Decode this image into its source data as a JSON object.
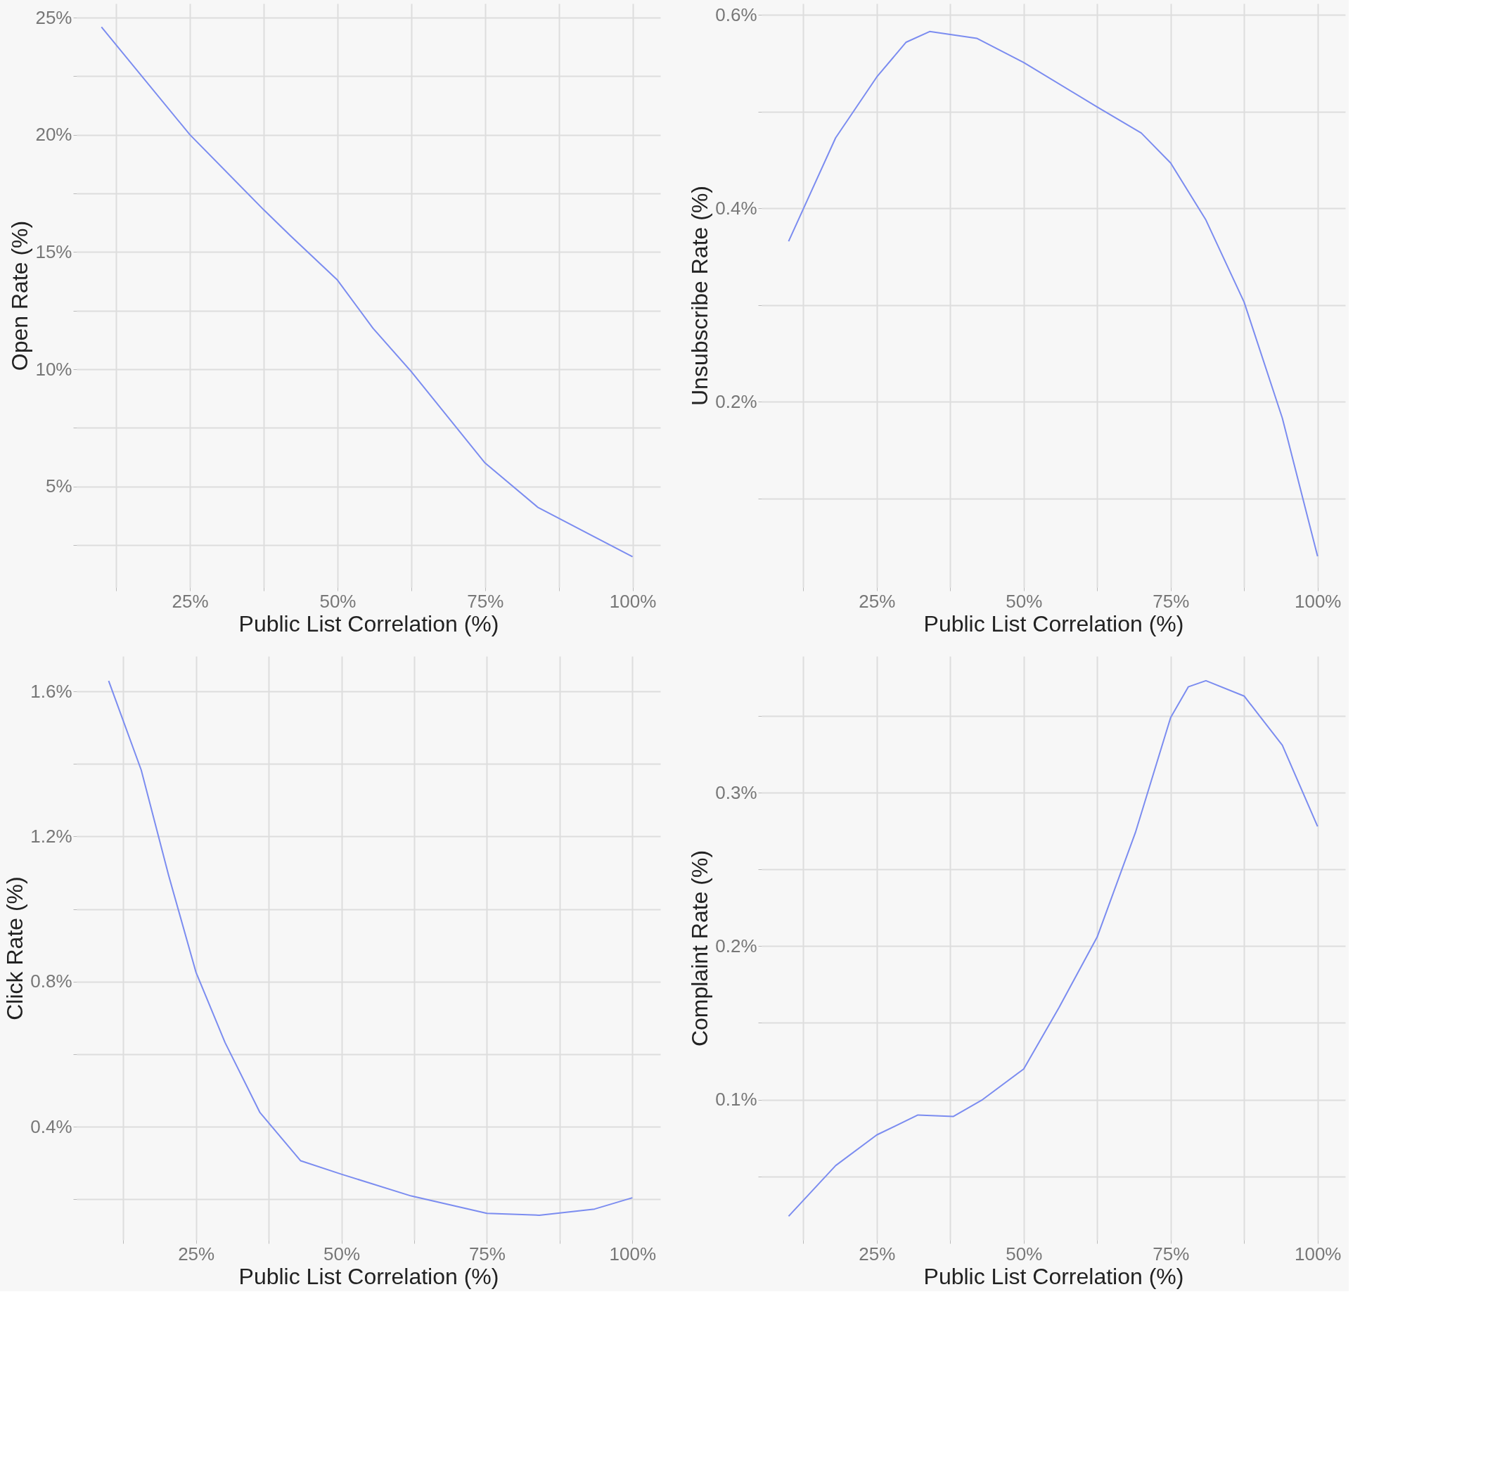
{
  "chart_data": [
    {
      "type": "line",
      "xlabel": "Public List Correlation (%)",
      "ylabel": "Open Rate (%)",
      "grid": true,
      "line_style": "solid",
      "x": [
        10,
        25,
        37.5,
        42,
        50,
        56,
        62.5,
        75,
        84,
        100
      ],
      "series": [
        {
          "color": "#7b8cf0",
          "values": [
            24.6,
            20.0,
            16.8,
            15.7,
            13.8,
            11.75,
            9.9,
            6.0,
            4.1,
            2.0
          ]
        }
      ],
      "xlim": [
        5.8,
        104.7
      ],
      "ylim": [
        0.7,
        25.6
      ],
      "xticks": [
        {
          "value": 12.5,
          "label": null
        },
        {
          "value": 25,
          "label": "25%"
        },
        {
          "value": 37.5,
          "label": null
        },
        {
          "value": 50,
          "label": "50%"
        },
        {
          "value": 62.5,
          "label": null
        },
        {
          "value": 75,
          "label": "75%"
        },
        {
          "value": 87.5,
          "label": null
        },
        {
          "value": 100,
          "label": "100%"
        }
      ],
      "yticks": [
        {
          "value": 2.5,
          "label": null
        },
        {
          "value": 5,
          "label": "5%"
        },
        {
          "value": 7.5,
          "label": null
        },
        {
          "value": 10,
          "label": "10%"
        },
        {
          "value": 12.5,
          "label": null
        },
        {
          "value": 15,
          "label": "15%"
        },
        {
          "value": 17.5,
          "label": null
        },
        {
          "value": 20,
          "label": "20%"
        },
        {
          "value": 22.5,
          "label": null
        },
        {
          "value": 25,
          "label": "25%"
        }
      ]
    },
    {
      "type": "line",
      "xlabel": "Public List Correlation (%)",
      "ylabel": "Unsubscribe Rate (%)",
      "grid": true,
      "line_style": "solid",
      "x": [
        10,
        18,
        25,
        30,
        34,
        42,
        50,
        62.5,
        70,
        75,
        81,
        87.5,
        94,
        100
      ],
      "series": [
        {
          "color": "#7b8cf0",
          "values": [
            0.366,
            0.473,
            0.536,
            0.572,
            0.583,
            0.576,
            0.551,
            0.505,
            0.478,
            0.447,
            0.388,
            0.303,
            0.183,
            0.04
          ]
        }
      ],
      "xlim": [
        5.4,
        104.7
      ],
      "ylim": [
        0.008,
        0.612
      ],
      "xticks": [
        {
          "value": 12.5,
          "label": null
        },
        {
          "value": 25,
          "label": "25%"
        },
        {
          "value": 37.5,
          "label": null
        },
        {
          "value": 50,
          "label": "50%"
        },
        {
          "value": 62.5,
          "label": null
        },
        {
          "value": 75,
          "label": "75%"
        },
        {
          "value": 87.5,
          "label": null
        },
        {
          "value": 100,
          "label": "100%"
        }
      ],
      "yticks": [
        {
          "value": 0.1,
          "label": null
        },
        {
          "value": 0.2,
          "label": "0.2%"
        },
        {
          "value": 0.3,
          "label": null
        },
        {
          "value": 0.4,
          "label": "0.4%"
        },
        {
          "value": 0.5,
          "label": null
        },
        {
          "value": 0.6,
          "label": "0.6%"
        }
      ]
    },
    {
      "type": "line",
      "xlabel": "Public List Correlation (%)",
      "ylabel": "Click Rate (%)",
      "grid": true,
      "line_style": "solid",
      "x": [
        10,
        15.6,
        20.3,
        25,
        30,
        36,
        43,
        50,
        62,
        75,
        84,
        93.5,
        100
      ],
      "series": [
        {
          "color": "#7b8cf0",
          "values": [
            1.629,
            1.383,
            1.093,
            0.826,
            0.632,
            0.439,
            0.306,
            0.269,
            0.209,
            0.161,
            0.156,
            0.173,
            0.204
          ]
        }
      ],
      "xlim": [
        4.5,
        104.8
      ],
      "ylim": [
        0.088,
        1.697
      ],
      "xticks": [
        {
          "value": 12.5,
          "label": null
        },
        {
          "value": 25,
          "label": "25%"
        },
        {
          "value": 37.5,
          "label": null
        },
        {
          "value": 50,
          "label": "50%"
        },
        {
          "value": 62.5,
          "label": null
        },
        {
          "value": 75,
          "label": "75%"
        },
        {
          "value": 87.5,
          "label": null
        },
        {
          "value": 100,
          "label": "100%"
        }
      ],
      "yticks": [
        {
          "value": 0.2,
          "label": null
        },
        {
          "value": 0.4,
          "label": "0.4%"
        },
        {
          "value": 0.6,
          "label": null
        },
        {
          "value": 0.8,
          "label": "0.8%"
        },
        {
          "value": 1.0,
          "label": null
        },
        {
          "value": 1.2,
          "label": "1.2%"
        },
        {
          "value": 1.4,
          "label": null
        },
        {
          "value": 1.6,
          "label": "1.6%"
        }
      ]
    },
    {
      "type": "line",
      "xlabel": "Public List Correlation (%)",
      "ylabel": "Complaint Rate (%)",
      "grid": true,
      "line_style": "solid",
      "x": [
        10,
        18,
        25,
        32,
        38,
        43,
        50,
        56,
        62.5,
        69,
        75,
        78,
        81,
        87.5,
        94,
        100
      ],
      "series": [
        {
          "color": "#7b8cf0",
          "values": [
            0.024,
            0.057,
            0.077,
            0.09,
            0.089,
            0.1,
            0.12,
            0.16,
            0.206,
            0.274,
            0.349,
            0.369,
            0.373,
            0.363,
            0.331,
            0.278
          ]
        }
      ],
      "xlim": [
        5.4,
        104.7
      ],
      "ylim": [
        0.0086,
        0.389
      ],
      "xticks": [
        {
          "value": 12.5,
          "label": null
        },
        {
          "value": 25,
          "label": "25%"
        },
        {
          "value": 37.5,
          "label": null
        },
        {
          "value": 50,
          "label": "50%"
        },
        {
          "value": 62.5,
          "label": null
        },
        {
          "value": 75,
          "label": "75%"
        },
        {
          "value": 87.5,
          "label": null
        },
        {
          "value": 100,
          "label": "100%"
        }
      ],
      "yticks": [
        {
          "value": 0.05,
          "label": null
        },
        {
          "value": 0.1,
          "label": "0.1%"
        },
        {
          "value": 0.15,
          "label": null
        },
        {
          "value": 0.2,
          "label": "0.2%"
        },
        {
          "value": 0.25,
          "label": null
        },
        {
          "value": 0.3,
          "label": "0.3%"
        },
        {
          "value": 0.35,
          "label": null
        }
      ]
    }
  ]
}
